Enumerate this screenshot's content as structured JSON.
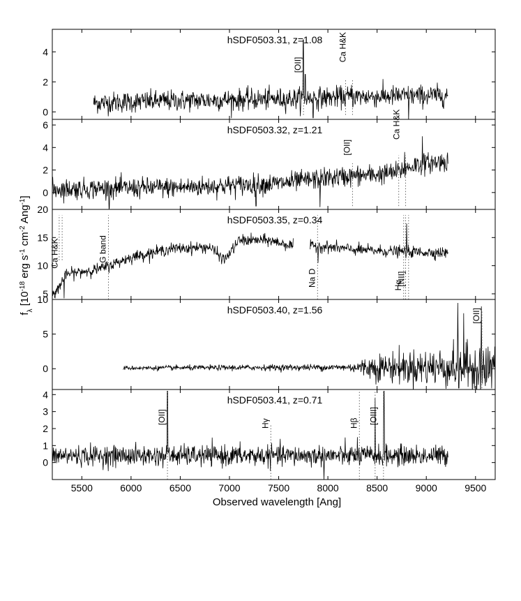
{
  "figure": {
    "ylabel": "f_λ [10^-18 erg s^-1 cm^-2 Ang^-1]",
    "xlabel": "Observed wavelength [Ang]"
  },
  "chart_data": [
    {
      "type": "line",
      "title": "hSDF0503.31, z=1.08",
      "xlim": [
        5200,
        9700
      ],
      "ylim": [
        -0.5,
        5.5
      ],
      "yticks": [
        0,
        2,
        4
      ],
      "xticks": [
        5500,
        6000,
        6500,
        7000,
        7500,
        8000,
        8500,
        9000,
        9500
      ],
      "show_xtick_labels": false,
      "series": [
        {
          "x_range": [
            5620,
            9220
          ],
          "continuum": [
            [
              5620,
              0.6
            ],
            [
              6500,
              0.75
            ],
            [
              7500,
              0.85
            ],
            [
              8200,
              1.0
            ],
            [
              9220,
              1.1
            ]
          ],
          "noise": 0.35,
          "features": [
            [
              7750,
              4.8
            ],
            [
              7770,
              2.5
            ],
            [
              7850,
              -0.4
            ],
            [
              8240,
              1.8
            ],
            [
              8820,
              -0.6
            ]
          ]
        }
      ],
      "annotations": [
        {
          "text": "[OII]",
          "x": 7752,
          "rotated": true,
          "line_x": [
            7752
          ],
          "line_y": [
            -0.2,
            2.2
          ],
          "label_y": 2.6
        },
        {
          "text": "Ca H&K",
          "x": 8210,
          "rotated": true,
          "line_x": [
            8180,
            8250
          ],
          "line_y": [
            -0.2,
            2.2
          ],
          "label_y": 3.3
        }
      ]
    },
    {
      "type": "line",
      "title": "hSDF0503.32, z=1.21",
      "xlim": [
        5200,
        9700
      ],
      "ylim": [
        -1.5,
        6.5
      ],
      "yticks": [
        0,
        2,
        4,
        6
      ],
      "xticks": [
        5500,
        6000,
        6500,
        7000,
        7500,
        8000,
        8500,
        9000,
        9500
      ],
      "show_xtick_labels": false,
      "series": [
        {
          "x_range": [
            5200,
            9220
          ],
          "continuum": [
            [
              5200,
              0.3
            ],
            [
              6500,
              0.45
            ],
            [
              7500,
              0.8
            ],
            [
              8000,
              1.3
            ],
            [
              8500,
              1.6
            ],
            [
              8700,
              1.8
            ],
            [
              8900,
              2.5
            ],
            [
              9220,
              2.8
            ]
          ],
          "noise": 0.45,
          "features": [
            [
              5780,
              -1.4
            ],
            [
              7270,
              -1.2
            ],
            [
              7920,
              -1.3
            ],
            [
              8780,
              3.6
            ],
            [
              8960,
              5.0
            ]
          ]
        }
      ],
      "annotations": [
        {
          "text": "[OII]",
          "x": 8250,
          "rotated": true,
          "line_x": [
            8250
          ],
          "line_y": [
            -1.2,
            2.6
          ],
          "label_y": 3.3
        },
        {
          "text": "Ca H&K",
          "x": 8755,
          "rotated": true,
          "line_x": [
            8720,
            8790
          ],
          "line_y": [
            -1.2,
            3.3
          ],
          "label_y": 4.7
        }
      ]
    },
    {
      "type": "line",
      "title": "hSDF0503.35, z=0.34",
      "xlim": [
        5200,
        9700
      ],
      "ylim": [
        4,
        20
      ],
      "yticks": [
        5,
        10,
        15,
        20
      ],
      "xticks": [
        5500,
        6000,
        6500,
        7000,
        7500,
        8000,
        8500,
        9000,
        9500
      ],
      "show_xtick_labels": false,
      "series": [
        {
          "x_range": [
            5200,
            9220
          ],
          "gap": [
            7650,
            7820
          ],
          "continuum": [
            [
              5200,
              4.5
            ],
            [
              5350,
              8.5
            ],
            [
              5700,
              9.5
            ],
            [
              6000,
              11.5
            ],
            [
              6400,
              13.0
            ],
            [
              6800,
              13.3
            ],
            [
              6950,
              11.0
            ],
            [
              7100,
              14.5
            ],
            [
              7400,
              14.5
            ],
            [
              7650,
              13.5
            ],
            [
              7820,
              13.5
            ],
            [
              7900,
              13.5
            ],
            [
              8300,
              12.8
            ],
            [
              8700,
              12.5
            ],
            [
              9220,
              12.3
            ]
          ],
          "noise": 0.5,
          "features": [
            [
              5260,
              5.0
            ],
            [
              5320,
              4.2
            ],
            [
              7900,
              10.5
            ],
            [
              8800,
              17.5
            ]
          ]
        }
      ],
      "annotations": [
        {
          "text": "Ca H&K",
          "x": 5280,
          "rotated": true,
          "line_x": [
            5270,
            5300
          ],
          "line_y": [
            11.0,
            19.0
          ],
          "label_y": 9.5,
          "label_above": true
        },
        {
          "text": "G band",
          "x": 5770,
          "rotated": true,
          "line_x": [
            5770
          ],
          "line_y": [
            4.0,
            19.0
          ],
          "label_y": 10.5,
          "label_above": true
        },
        {
          "text": "Na D",
          "x": 7895,
          "rotated": true,
          "line_x": [
            7895
          ],
          "line_y": [
            4.0,
            19.0
          ],
          "label_y": 9.5,
          "label_below": true
        },
        {
          "text": "Hα",
          "x": 8770,
          "rotated": true,
          "line_x": [
            8770
          ],
          "line_y": [
            4.0,
            19.0
          ],
          "label_y": 7.5,
          "label_below": true
        },
        {
          "text": "[NII]",
          "x": 8805,
          "rotated": true,
          "line_x": [
            8790,
            8820
          ],
          "line_y": [
            4.0,
            19.0
          ],
          "label_y": 9.0,
          "label_below": true
        }
      ]
    },
    {
      "type": "line",
      "title": "hSDF0503.40, z=1.56",
      "xlim": [
        5200,
        9700
      ],
      "ylim": [
        -3,
        10
      ],
      "yticks": [
        0,
        5,
        10
      ],
      "xticks": [
        5500,
        6000,
        6500,
        7000,
        7500,
        8000,
        8500,
        9000,
        9500
      ],
      "show_xtick_labels": false,
      "series": [
        {
          "x_range": [
            5920,
            9700
          ],
          "continuum": [
            [
              5920,
              0.1
            ],
            [
              8000,
              0.2
            ],
            [
              9700,
              0.2
            ]
          ],
          "noise_profile": [
            [
              5920,
              0.15
            ],
            [
              8200,
              0.25
            ],
            [
              8500,
              1.0
            ],
            [
              9300,
              1.5
            ],
            [
              9700,
              2.0
            ]
          ],
          "features": [
            [
              9320,
              9.5
            ],
            [
              9330,
              -2.8
            ],
            [
              9380,
              8.0
            ],
            [
              9560,
              9.0
            ],
            [
              9600,
              -2.5
            ]
          ]
        }
      ],
      "annotations": [
        {
          "text": "[OII]",
          "x": 9565,
          "rotated": true,
          "line_x": [
            9565
          ],
          "line_y": [
            -2.8,
            8.5
          ],
          "label_y": 6.5
        }
      ]
    },
    {
      "type": "line",
      "title": "hSDF0503.41, z=0.71",
      "xlim": [
        5200,
        9700
      ],
      "ylim": [
        -1,
        4.3
      ],
      "yticks": [
        0,
        1,
        2,
        3,
        4
      ],
      "xticks": [
        5500,
        6000,
        6500,
        7000,
        7500,
        8000,
        8500,
        9000,
        9500
      ],
      "show_xtick_labels": true,
      "series": [
        {
          "x_range": [
            5200,
            9220
          ],
          "continuum": [
            [
              5200,
              0.4
            ],
            [
              9220,
              0.4
            ]
          ],
          "noise": 0.3,
          "features": [
            [
              6370,
              4.2
            ],
            [
              8300,
              1.5
            ],
            [
              8480,
              3.8
            ],
            [
              8570,
              4.2
            ],
            [
              7960,
              -1.0
            ]
          ]
        }
      ],
      "annotations": [
        {
          "text": "[OII]",
          "x": 6370,
          "rotated": true,
          "line_x": [
            6370
          ],
          "line_y": [
            -1.0,
            4.2
          ],
          "label_y": 2.2,
          "label_side": "left"
        },
        {
          "text": "Hγ",
          "x": 7420,
          "rotated": true,
          "line_x": [
            7420
          ],
          "line_y": [
            -1.0,
            2.2
          ],
          "label_y": 2.0
        },
        {
          "text": "Hβ",
          "x": 8320,
          "rotated": true,
          "line_x": [
            8320
          ],
          "line_y": [
            -1.0,
            4.2
          ],
          "label_y": 2.0
        },
        {
          "text": "[OIII]",
          "x": 8520,
          "rotated": true,
          "line_x": [
            8480,
            8565
          ],
          "line_y": [
            -1.0,
            4.2
          ],
          "label_y": 2.2
        }
      ]
    }
  ]
}
